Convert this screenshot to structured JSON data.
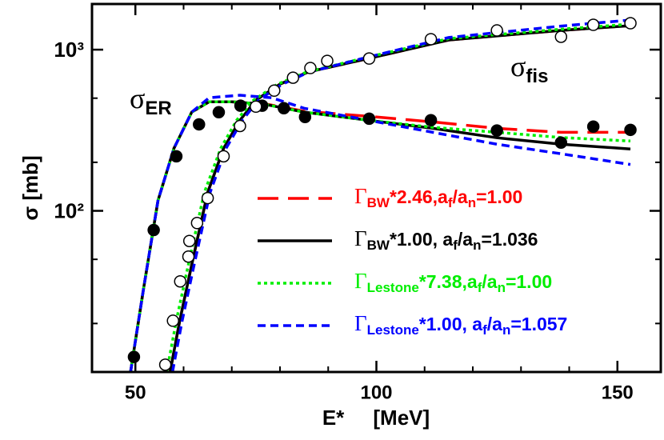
{
  "chart_data": {
    "type": "line",
    "xlabel": "E*     [MeV]",
    "ylabel": "σ [mb]",
    "xlim": [
      41,
      159
    ],
    "xticks": [
      50,
      100,
      150
    ],
    "xminorticks": [
      60,
      70,
      80,
      90,
      110,
      120,
      130,
      140
    ],
    "ylim": [
      10,
      1920
    ],
    "log_y": true,
    "yticks": [
      {
        "value": 100,
        "label": "10²"
      },
      {
        "value": 1000,
        "label": "10³"
      }
    ],
    "yminorticks": [
      20,
      50,
      200,
      500
    ],
    "annotations": [
      {
        "symbol": "σ",
        "sub": "ER"
      },
      {
        "symbol": "σ",
        "sub": "fis"
      }
    ],
    "points": [
      {
        "color": "#000000",
        "filled": true,
        "x": [
          49.7,
          53.8,
          58.5,
          63.2,
          67.3,
          71.8,
          76.3,
          80.8,
          85.2,
          98.5,
          111.3,
          125,
          138.3,
          145,
          152.7
        ],
        "values": [
          12.4,
          76,
          218,
          344,
          409,
          449,
          449,
          433,
          382,
          373,
          365,
          315,
          265,
          333,
          318
        ]
      },
      {
        "color": "#000000",
        "filled": false,
        "x": [
          56.2,
          57.8,
          59.3,
          61,
          61.2,
          62.8,
          65,
          68.3,
          71.7,
          75,
          78.8,
          82.7,
          86.3,
          89.8,
          98.5,
          111.3,
          125,
          138.3,
          145,
          152.7
        ],
        "values": [
          11.1,
          20.8,
          36.5,
          52,
          65,
          84,
          120,
          218,
          336,
          443,
          557,
          670,
          769,
          852,
          881,
          1162,
          1316,
          1202,
          1426,
          1459
        ]
      }
    ],
    "series": [
      {
        "name_parts": [
          "Γ",
          "BW",
          "*2.46,a",
          "f",
          "/a",
          "n",
          "=1.00"
        ],
        "color": "#ff0000",
        "dash": "26,12",
        "x": [
          49,
          51.7,
          54.7,
          58,
          61.7,
          65.3,
          70,
          76.7,
          85,
          98.3,
          111.7,
          125,
          138.3,
          152.7,
          null,
          57.2,
          59.2,
          61.7,
          65,
          68.3,
          71.7,
          75,
          80,
          85.8,
          98.3,
          115,
          138.3,
          152.7
        ],
        "values": [
          10,
          33,
          116,
          244,
          410,
          475,
          475,
          462,
          415,
          386,
          356,
          325,
          307,
          307,
          null,
          10,
          20.8,
          46.4,
          130,
          244,
          365,
          486,
          611,
          726,
          881,
          1148,
          1316,
          1409
        ]
      },
      {
        "name_parts": [
          "Γ",
          "BW",
          "*1.00, a",
          "f",
          "/a",
          "n",
          "=1.036"
        ],
        "color": "#000000",
        "dash": "",
        "x": [
          49,
          51.7,
          54.7,
          58,
          61.7,
          65.3,
          70,
          76.7,
          85,
          98.3,
          111.7,
          125,
          138.3,
          152.7,
          null,
          57.2,
          59.2,
          61.7,
          65,
          68.3,
          71.7,
          75,
          80,
          85.8,
          98.3,
          115,
          138.3,
          152.7
        ],
        "values": [
          10,
          33,
          116,
          244,
          410,
          475,
          475,
          459,
          410,
          365,
          325,
          284,
          259,
          242,
          null,
          10,
          20.8,
          46.4,
          130,
          244,
          365,
          486,
          611,
          726,
          881,
          1148,
          1316,
          1409
        ]
      },
      {
        "name_parts": [
          "Γ",
          "Lestone",
          "*7.38,a",
          "f",
          "/a",
          "n",
          "=1.00"
        ],
        "color": "#00ee00",
        "dash": "4,4",
        "x": [
          49,
          51.7,
          54.7,
          58,
          61.7,
          65.3,
          70,
          76.7,
          85,
          98.3,
          111.7,
          125,
          138.3,
          152.7,
          null,
          56.5,
          58.5,
          61,
          64.3,
          67.7,
          71,
          74.5,
          79.5,
          85.5,
          98.3,
          115,
          138.3,
          152.7
        ],
        "values": [
          10,
          33,
          116,
          244,
          410,
          475,
          475,
          459,
          410,
          365,
          330,
          307,
          285,
          271,
          null,
          10,
          20.8,
          46.4,
          130,
          244,
          365,
          486,
          611,
          726,
          900,
          1170,
          1340,
          1440
        ]
      },
      {
        "name_parts": [
          "Γ",
          "Lestone",
          "*1.00, a",
          "f",
          "/a",
          "n",
          "=1.057"
        ],
        "color": "#0000ff",
        "dash": "10,6",
        "x": [
          49,
          51.7,
          54.7,
          58,
          61.7,
          65.3,
          71.7,
          78.3,
          85,
          98.3,
          111.7,
          125,
          138.3,
          152.7,
          null,
          57.7,
          59.7,
          62.2,
          65.5,
          68.8,
          72.2,
          75.5,
          80.5,
          86,
          98.3,
          115,
          138.3,
          152.7
        ],
        "values": [
          10,
          33,
          116,
          244,
          410,
          503,
          522,
          503,
          433,
          365,
          307,
          259,
          226,
          194,
          null,
          10,
          20.8,
          46.4,
          130,
          244,
          365,
          486,
          611,
          726,
          900,
          1190,
          1400,
          1527
        ]
      }
    ]
  }
}
